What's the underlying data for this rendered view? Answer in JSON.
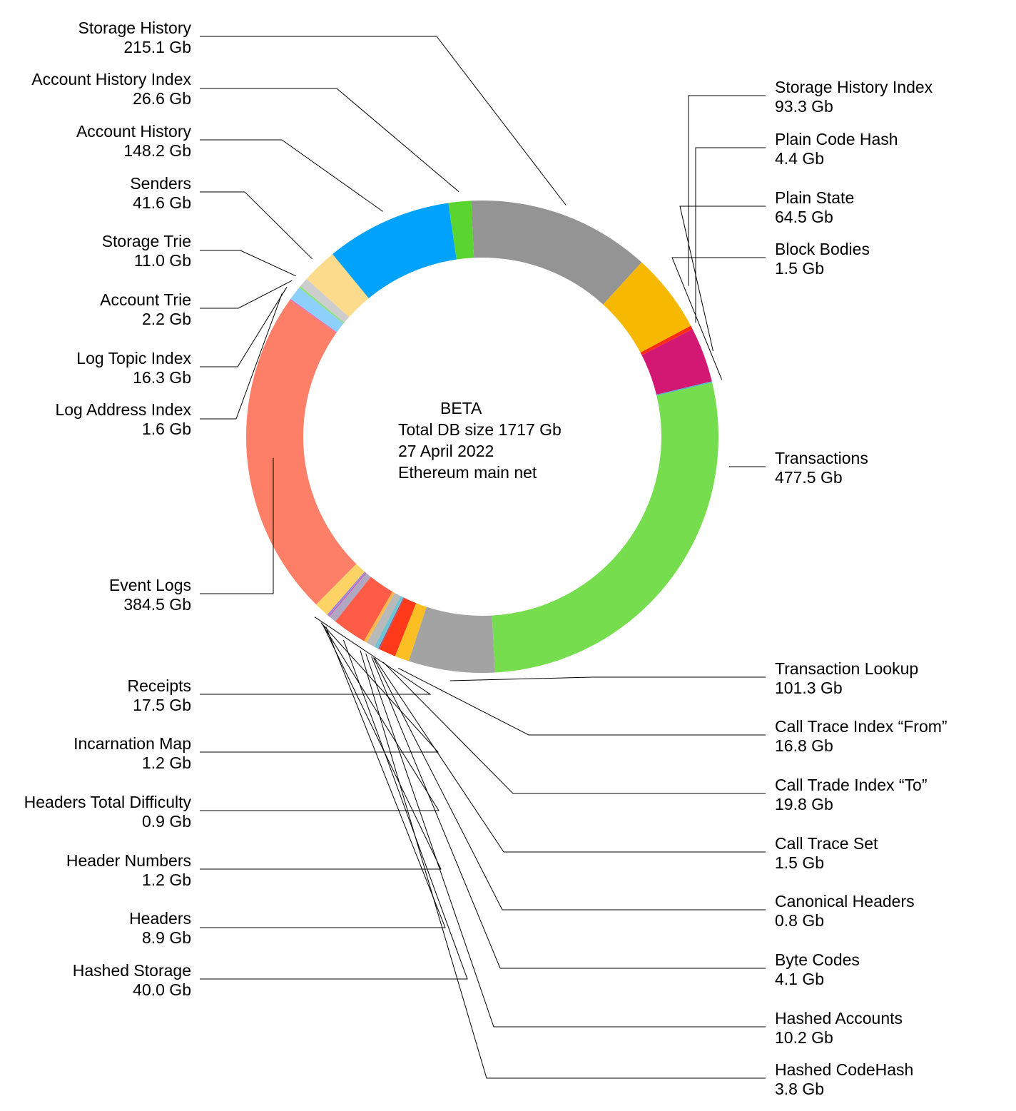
{
  "chart_data": {
    "type": "pie",
    "variant": "donut",
    "center_text": [
      "BETA",
      "Total DB size 1717 Gb",
      "27 April 2022",
      "Ethereum main net"
    ],
    "slices": [
      {
        "label": "Storage History",
        "value_text": "215.1 Gb",
        "value": 215.1,
        "color": "#949494"
      },
      {
        "label": "Storage History Index",
        "value_text": "93.3 Gb",
        "value": 93.3,
        "color": "#F6B800"
      },
      {
        "label": "Plain Code Hash",
        "value_text": "4.4 Gb",
        "value": 4.4,
        "color": "#FF2D16"
      },
      {
        "label": "Plain State",
        "value_text": "64.5 Gb",
        "value": 64.5,
        "color": "#D31873"
      },
      {
        "label": "Block Bodies",
        "value_text": "1.5 Gb",
        "value": 1.5,
        "color": "#49B8C8"
      },
      {
        "label": "Transactions",
        "value_text": "477.5 Gb",
        "value": 477.5,
        "color": "#76DD4E"
      },
      {
        "label": "Transaction Lookup",
        "value_text": "101.3 Gb",
        "value": 101.3,
        "color": "#A3A3A3"
      },
      {
        "label": "Call Trace Index “From”",
        "value_text": "16.8 Gb",
        "value": 16.8,
        "color": "#FCBF23"
      },
      {
        "label": "Call Trade Index “To”",
        "value_text": "19.8 Gb",
        "value": 19.8,
        "color": "#FF3A1A"
      },
      {
        "label": "Call Trace Set",
        "value_text": "1.5 Gb",
        "value": 1.5,
        "color": "#B14F6E"
      },
      {
        "label": "Canonical Headers",
        "value_text": "0.8 Gb",
        "value": 0.8,
        "color": "#55B8F2"
      },
      {
        "label": "Byte Codes",
        "value_text": "4.1 Gb",
        "value": 4.1,
        "color": "#6DC5D0"
      },
      {
        "label": "Hashed Accounts",
        "value_text": "10.2 Gb",
        "value": 10.2,
        "color": "#B9B9B9"
      },
      {
        "label": "Hashed CodeHash",
        "value_text": "3.8 Gb",
        "value": 3.8,
        "color": "#FFB84A"
      },
      {
        "label": "Hashed Storage",
        "value_text": "40.0 Gb",
        "value": 40.0,
        "color": "#FF5C47"
      },
      {
        "label": "Headers",
        "value_text": "8.9 Gb",
        "value": 8.9,
        "color": "#B0A8C2"
      },
      {
        "label": "Header Numbers",
        "value_text": "1.2 Gb",
        "value": 1.2,
        "color": "#E04AA7"
      },
      {
        "label": "Headers Total Difficulty",
        "value_text": "0.9 Gb",
        "value": 0.9,
        "color": "#6FA9E6"
      },
      {
        "label": "Incarnation Map",
        "value_text": "1.2 Gb",
        "value": 1.2,
        "color": "#A56BD9"
      },
      {
        "label": "Receipts",
        "value_text": "17.5 Gb",
        "value": 17.5,
        "color": "#FDD366"
      },
      {
        "label": "Event Logs",
        "value_text": "384.5 Gb",
        "value": 384.5,
        "color": "#FE7F68"
      },
      {
        "label": "Log Address Index",
        "value_text": "1.6 Gb",
        "value": 1.6,
        "color": "#E872AC"
      },
      {
        "label": "Log Topic Index",
        "value_text": "16.3 Gb",
        "value": 16.3,
        "color": "#8ED0FC"
      },
      {
        "label": "Account Trie",
        "value_text": "2.2 Gb",
        "value": 2.2,
        "color": "#8CE07E"
      },
      {
        "label": "Storage Trie",
        "value_text": "11.0 Gb",
        "value": 11.0,
        "color": "#CDCDCD"
      },
      {
        "label": "Senders",
        "value_text": "41.6 Gb",
        "value": 41.6,
        "color": "#FCDC8C"
      },
      {
        "label": "Account History",
        "value_text": "148.2 Gb",
        "value": 148.2,
        "color": "#00A2FB"
      },
      {
        "label": "Account History Index",
        "value_text": "26.6 Gb",
        "value": 26.6,
        "color": "#5AD530"
      }
    ]
  }
}
